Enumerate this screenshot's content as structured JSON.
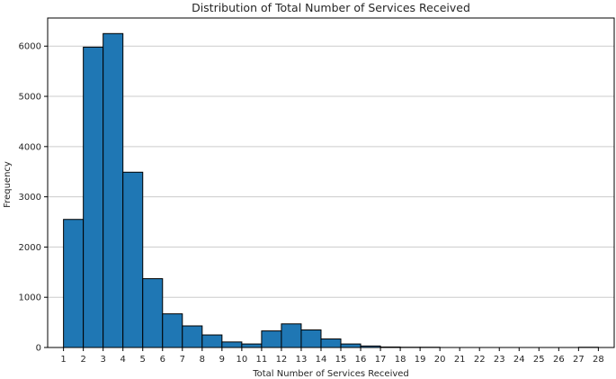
{
  "chart_data": {
    "type": "bar",
    "subtype": "histogram",
    "title": "Distribution of Total Number of Services Received",
    "xlabel": "Total Number of Services Received",
    "ylabel": "Frequency",
    "bin_edges": [
      1,
      2,
      3,
      4,
      5,
      6,
      7,
      8,
      9,
      10,
      11,
      12,
      13,
      14,
      15,
      16,
      17,
      18,
      19,
      20,
      21,
      22,
      23,
      24,
      25,
      26,
      27,
      28
    ],
    "values": [
      2550,
      5980,
      6250,
      3490,
      1370,
      670,
      430,
      250,
      110,
      70,
      330,
      470,
      350,
      170,
      70,
      30,
      10,
      5,
      5,
      0,
      0,
      0,
      0,
      0,
      0,
      0,
      5
    ],
    "x_ticks": [
      "1",
      "2",
      "3",
      "4",
      "5",
      "6",
      "7",
      "8",
      "9",
      "10",
      "11",
      "12",
      "13",
      "14",
      "15",
      "16",
      "17",
      "18",
      "19",
      "20",
      "21",
      "22",
      "23",
      "24",
      "25",
      "26",
      "27",
      "28"
    ],
    "y_ticks": [
      "0",
      "1000",
      "2000",
      "3000",
      "4000",
      "5000",
      "6000"
    ],
    "ylim": [
      0,
      6560
    ],
    "xlim": [
      0.2,
      28.8
    ],
    "grid": "horizontal",
    "bar_color": "#1f77b4",
    "edge_color": "#000000",
    "grid_color": "#cccccc"
  }
}
